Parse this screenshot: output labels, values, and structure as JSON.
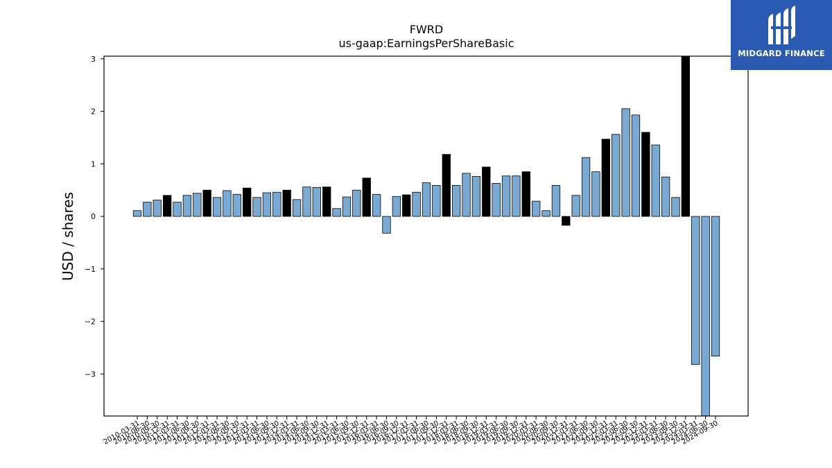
{
  "logo": {
    "text": "MIDGARD FINANCE",
    "icon": "midgard-logo-icon",
    "bg_color": "#2b5ab3"
  },
  "colors": {
    "normal_bar": "#7aaad3",
    "highlight_bar": "#000000",
    "edge": "#000000"
  },
  "chart_data": {
    "type": "bar",
    "title": "FWRD",
    "subtitle": "us-gaap:EarningsPerShareBasic",
    "xlabel": "",
    "ylabel": "USD / shares",
    "ylim": [
      -3.8,
      3.05
    ],
    "yticks": [
      -3,
      -2,
      -1,
      0,
      1,
      2,
      3
    ],
    "ytick_labels": [
      "−3",
      "−2",
      "−1",
      "0",
      "1",
      "2",
      "3"
    ],
    "grid": false,
    "categories": [
      "2010-03-31",
      "2010-06-30",
      "2010-09-30",
      "2010-12-31",
      "2011-03-31",
      "2011-06-30",
      "2011-09-30",
      "2011-12-31",
      "2012-03-31",
      "2012-06-30",
      "2012-09-30",
      "2012-12-31",
      "2013-03-31",
      "2013-06-30",
      "2013-09-30",
      "2013-12-31",
      "2014-03-31",
      "2014-06-30",
      "2014-09-30",
      "2014-12-31",
      "2015-03-31",
      "2015-06-30",
      "2015-09-30",
      "2015-12-31",
      "2016-03-31",
      "2016-06-30",
      "2016-09-30",
      "2016-12-31",
      "2017-03-31",
      "2017-06-30",
      "2017-09-30",
      "2017-12-31",
      "2018-03-31",
      "2018-06-30",
      "2018-09-30",
      "2018-12-31",
      "2019-03-31",
      "2019-06-30",
      "2019-09-30",
      "2019-12-31",
      "2020-03-31",
      "2020-06-30",
      "2020-09-30",
      "2020-12-31",
      "2021-03-31",
      "2021-06-30",
      "2021-09-30",
      "2021-12-31",
      "2022-03-31",
      "2022-06-30",
      "2022-09-30",
      "2022-12-31",
      "2023-03-31",
      "2023-06-30",
      "2023-09-30",
      "2023-12-31",
      "2024-03-31",
      "2024-06-30",
      "2024-09-30"
    ],
    "values": [
      0.11,
      0.27,
      0.31,
      0.4,
      0.27,
      0.4,
      0.44,
      0.5,
      0.36,
      0.49,
      0.42,
      0.54,
      0.36,
      0.45,
      0.46,
      0.5,
      0.32,
      0.56,
      0.55,
      0.56,
      0.15,
      0.37,
      0.5,
      0.73,
      0.42,
      -0.32,
      0.38,
      0.41,
      0.46,
      0.64,
      0.59,
      1.18,
      0.59,
      0.82,
      0.76,
      0.94,
      0.63,
      0.77,
      0.77,
      0.85,
      0.29,
      0.11,
      0.59,
      -0.17,
      0.4,
      1.12,
      0.85,
      1.47,
      1.56,
      2.05,
      1.93,
      1.6,
      1.36,
      0.75,
      0.36,
      3.05,
      -2.82,
      -3.8,
      -2.66
    ],
    "highlight": [
      false,
      false,
      false,
      true,
      false,
      false,
      false,
      true,
      false,
      false,
      false,
      true,
      false,
      false,
      false,
      true,
      false,
      false,
      false,
      true,
      false,
      false,
      false,
      true,
      false,
      false,
      false,
      true,
      false,
      false,
      false,
      true,
      false,
      false,
      false,
      true,
      false,
      false,
      false,
      true,
      false,
      false,
      false,
      true,
      false,
      false,
      false,
      true,
      false,
      false,
      false,
      true,
      false,
      false,
      false,
      true,
      false,
      false,
      false
    ]
  }
}
